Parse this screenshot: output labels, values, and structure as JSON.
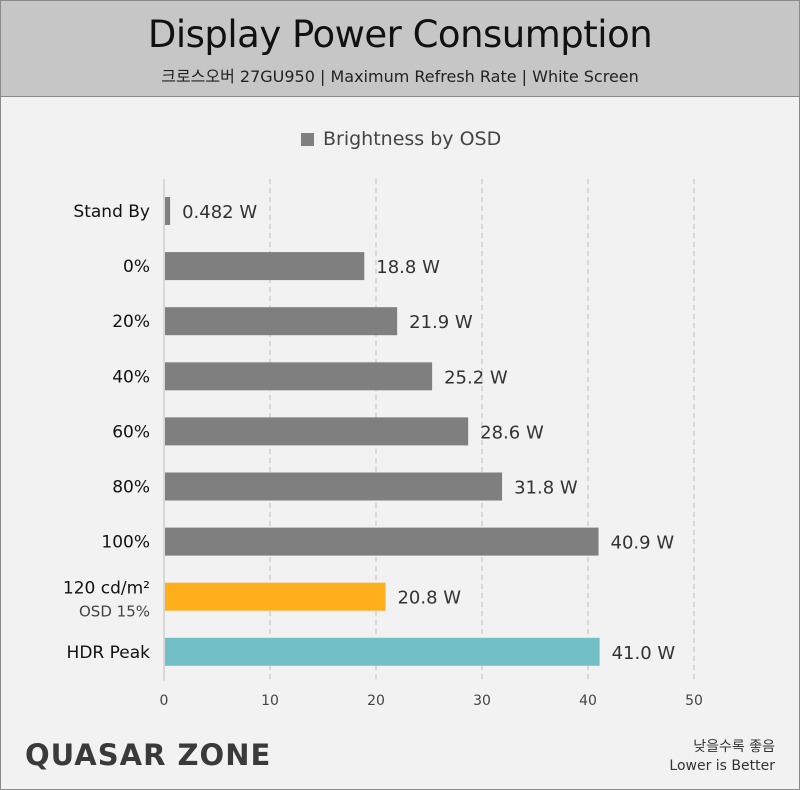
{
  "header": {
    "title": "Display Power Consumption",
    "subtitle": "크로스오버 27GU950 | Maximum Refresh Rate | White Screen"
  },
  "legend": {
    "label": "Brightness by OSD",
    "color": "#7f7f7f"
  },
  "brand": {
    "text": "QUASAR ZONE"
  },
  "note": {
    "line1": "낮을수록 좋음",
    "line2": "Lower is Better"
  },
  "chart_data": {
    "type": "bar",
    "orientation": "horizontal",
    "title": "Display Power Consumption",
    "xlim": [
      0,
      50
    ],
    "xticks": [
      "0",
      "10",
      "20",
      "30",
      "40",
      "50"
    ],
    "grid": true,
    "legend_position": "top-center",
    "unit": "W",
    "bars": [
      {
        "label": "Stand By",
        "sublabel": "",
        "value": 0.482,
        "value_label": "0.482 W",
        "color": "#7f7f7f"
      },
      {
        "label": "0%",
        "sublabel": "",
        "value": 18.8,
        "value_label": "18.8 W",
        "color": "#7f7f7f"
      },
      {
        "label": "20%",
        "sublabel": "",
        "value": 21.9,
        "value_label": "21.9 W",
        "color": "#7f7f7f"
      },
      {
        "label": "40%",
        "sublabel": "",
        "value": 25.2,
        "value_label": "25.2 W",
        "color": "#7f7f7f"
      },
      {
        "label": "60%",
        "sublabel": "",
        "value": 28.6,
        "value_label": "28.6 W",
        "color": "#7f7f7f"
      },
      {
        "label": "80%",
        "sublabel": "",
        "value": 31.8,
        "value_label": "31.8 W",
        "color": "#7f7f7f"
      },
      {
        "label": "100%",
        "sublabel": "",
        "value": 40.9,
        "value_label": "40.9 W",
        "color": "#7f7f7f"
      },
      {
        "label": "120 cd/m²",
        "sublabel": "OSD 15%",
        "value": 20.8,
        "value_label": "20.8 W",
        "color": "#ffae1c"
      },
      {
        "label": "HDR Peak",
        "sublabel": "",
        "value": 41.0,
        "value_label": "41.0 W",
        "color": "#72c0c6"
      }
    ]
  }
}
